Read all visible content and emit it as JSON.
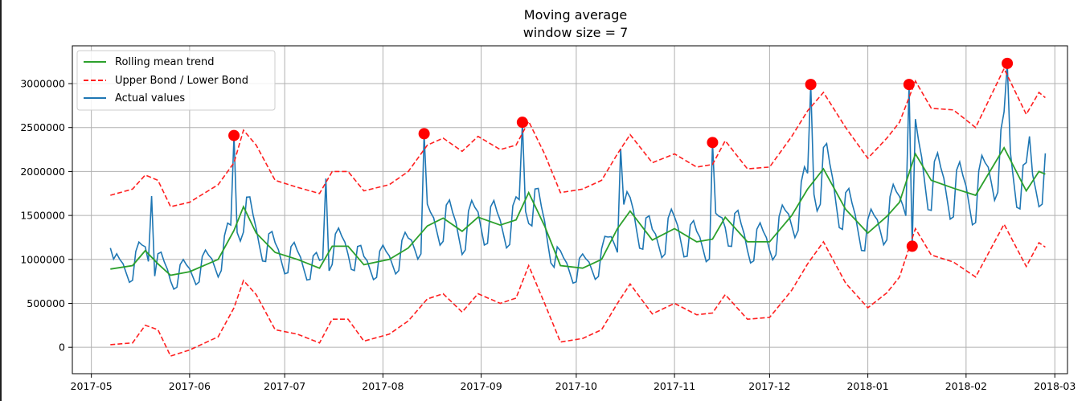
{
  "chart_data": {
    "type": "line",
    "title": "Moving average",
    "subtitle": "window size = 7",
    "xlabel": "",
    "ylabel": "",
    "xlim": [
      "2017-04-25",
      "2018-03-05"
    ],
    "ylim": [
      -300000,
      3430000
    ],
    "grid": true,
    "legend_position": "top-left",
    "x_ticks": [
      "2017-05",
      "2017-06",
      "2017-07",
      "2017-08",
      "2017-09",
      "2017-10",
      "2017-11",
      "2017-12",
      "2018-01",
      "2018-02",
      "2018-03"
    ],
    "y_ticks": [
      0,
      500000,
      1000000,
      1500000,
      2000000,
      2500000,
      3000000
    ],
    "series": [
      {
        "name": "Rolling mean trend",
        "color": "#2ca02c",
        "style": "solid",
        "points": [
          [
            "2017-05-07",
            890000
          ],
          [
            "2017-05-14",
            930000
          ],
          [
            "2017-05-18",
            1100000
          ],
          [
            "2017-05-22",
            950000
          ],
          [
            "2017-05-26",
            820000
          ],
          [
            "2017-06-01",
            860000
          ],
          [
            "2017-06-10",
            1000000
          ],
          [
            "2017-06-15",
            1330000
          ],
          [
            "2017-06-18",
            1600000
          ],
          [
            "2017-06-22",
            1300000
          ],
          [
            "2017-06-28",
            1080000
          ],
          [
            "2017-07-05",
            1000000
          ],
          [
            "2017-07-12",
            900000
          ],
          [
            "2017-07-16",
            1150000
          ],
          [
            "2017-07-21",
            1150000
          ],
          [
            "2017-07-26",
            940000
          ],
          [
            "2017-08-03",
            1000000
          ],
          [
            "2017-08-09",
            1130000
          ],
          [
            "2017-08-15",
            1380000
          ],
          [
            "2017-08-20",
            1470000
          ],
          [
            "2017-08-26",
            1320000
          ],
          [
            "2017-08-31",
            1480000
          ],
          [
            "2017-09-07",
            1390000
          ],
          [
            "2017-09-12",
            1450000
          ],
          [
            "2017-09-16",
            1760000
          ],
          [
            "2017-09-21",
            1380000
          ],
          [
            "2017-09-26",
            930000
          ],
          [
            "2017-10-03",
            900000
          ],
          [
            "2017-10-09",
            1000000
          ],
          [
            "2017-10-14",
            1350000
          ],
          [
            "2017-10-18",
            1550000
          ],
          [
            "2017-10-25",
            1220000
          ],
          [
            "2017-11-01",
            1350000
          ],
          [
            "2017-11-08",
            1200000
          ],
          [
            "2017-11-13",
            1230000
          ],
          [
            "2017-11-17",
            1480000
          ],
          [
            "2017-11-24",
            1200000
          ],
          [
            "2017-12-01",
            1200000
          ],
          [
            "2017-12-08",
            1500000
          ],
          [
            "2017-12-13",
            1800000
          ],
          [
            "2017-12-18",
            2030000
          ],
          [
            "2017-12-25",
            1570000
          ],
          [
            "2018-01-01",
            1300000
          ],
          [
            "2018-01-07",
            1490000
          ],
          [
            "2018-01-11",
            1650000
          ],
          [
            "2018-01-16",
            2200000
          ],
          [
            "2018-01-21",
            1900000
          ],
          [
            "2018-01-28",
            1810000
          ],
          [
            "2018-02-04",
            1730000
          ],
          [
            "2018-02-13",
            2270000
          ],
          [
            "2018-02-20",
            1780000
          ],
          [
            "2018-02-24",
            2000000
          ],
          [
            "2018-02-26",
            1970000
          ]
        ]
      },
      {
        "name": "Upper Bond / Lower Bond",
        "color": "#ff2020",
        "style": "dashed",
        "bands": [
          [
            [
              "2017-05-07",
              1730000
            ],
            [
              "2017-05-14",
              1800000
            ],
            [
              "2017-05-18",
              1960000
            ],
            [
              "2017-05-22",
              1900000
            ],
            [
              "2017-05-26",
              1600000
            ],
            [
              "2017-06-01",
              1650000
            ],
            [
              "2017-06-10",
              1850000
            ],
            [
              "2017-06-15",
              2100000
            ],
            [
              "2017-06-18",
              2470000
            ],
            [
              "2017-06-22",
              2300000
            ],
            [
              "2017-06-28",
              1900000
            ],
            [
              "2017-07-05",
              1820000
            ],
            [
              "2017-07-12",
              1750000
            ],
            [
              "2017-07-16",
              2000000
            ],
            [
              "2017-07-21",
              2000000
            ],
            [
              "2017-07-26",
              1780000
            ],
            [
              "2017-08-03",
              1850000
            ],
            [
              "2017-08-09",
              2000000
            ],
            [
              "2017-08-15",
              2300000
            ],
            [
              "2017-08-20",
              2380000
            ],
            [
              "2017-08-26",
              2230000
            ],
            [
              "2017-08-31",
              2400000
            ],
            [
              "2017-09-07",
              2250000
            ],
            [
              "2017-09-12",
              2300000
            ],
            [
              "2017-09-16",
              2570000
            ],
            [
              "2017-09-21",
              2200000
            ],
            [
              "2017-09-26",
              1760000
            ],
            [
              "2017-10-03",
              1800000
            ],
            [
              "2017-10-09",
              1900000
            ],
            [
              "2017-10-14",
              2200000
            ],
            [
              "2017-10-18",
              2420000
            ],
            [
              "2017-10-25",
              2100000
            ],
            [
              "2017-11-01",
              2200000
            ],
            [
              "2017-11-08",
              2050000
            ],
            [
              "2017-11-13",
              2080000
            ],
            [
              "2017-11-17",
              2350000
            ],
            [
              "2017-11-24",
              2030000
            ],
            [
              "2017-12-01",
              2050000
            ],
            [
              "2017-12-08",
              2400000
            ],
            [
              "2017-12-13",
              2690000
            ],
            [
              "2017-12-18",
              2900000
            ],
            [
              "2017-12-25",
              2500000
            ],
            [
              "2018-01-01",
              2150000
            ],
            [
              "2018-01-07",
              2380000
            ],
            [
              "2018-01-11",
              2560000
            ],
            [
              "2018-01-16",
              3030000
            ],
            [
              "2018-01-21",
              2720000
            ],
            [
              "2018-01-28",
              2700000
            ],
            [
              "2018-02-04",
              2500000
            ],
            [
              "2018-02-13",
              3170000
            ],
            [
              "2018-02-20",
              2650000
            ],
            [
              "2018-02-24",
              2900000
            ],
            [
              "2018-02-26",
              2840000
            ]
          ],
          [
            [
              "2017-05-07",
              30000
            ],
            [
              "2017-05-14",
              50000
            ],
            [
              "2017-05-18",
              250000
            ],
            [
              "2017-05-22",
              200000
            ],
            [
              "2017-05-26",
              -100000
            ],
            [
              "2017-06-01",
              -30000
            ],
            [
              "2017-06-10",
              120000
            ],
            [
              "2017-06-15",
              450000
            ],
            [
              "2017-06-18",
              760000
            ],
            [
              "2017-06-22",
              600000
            ],
            [
              "2017-06-28",
              200000
            ],
            [
              "2017-07-05",
              150000
            ],
            [
              "2017-07-12",
              50000
            ],
            [
              "2017-07-16",
              320000
            ],
            [
              "2017-07-21",
              320000
            ],
            [
              "2017-07-26",
              70000
            ],
            [
              "2017-08-03",
              150000
            ],
            [
              "2017-08-09",
              300000
            ],
            [
              "2017-08-15",
              550000
            ],
            [
              "2017-08-20",
              610000
            ],
            [
              "2017-08-26",
              400000
            ],
            [
              "2017-08-31",
              610000
            ],
            [
              "2017-09-07",
              500000
            ],
            [
              "2017-09-12",
              560000
            ],
            [
              "2017-09-16",
              930000
            ],
            [
              "2017-09-21",
              500000
            ],
            [
              "2017-09-26",
              60000
            ],
            [
              "2017-10-03",
              100000
            ],
            [
              "2017-10-09",
              200000
            ],
            [
              "2017-10-14",
              500000
            ],
            [
              "2017-10-18",
              720000
            ],
            [
              "2017-10-25",
              380000
            ],
            [
              "2017-11-01",
              500000
            ],
            [
              "2017-11-08",
              370000
            ],
            [
              "2017-11-13",
              390000
            ],
            [
              "2017-11-17",
              600000
            ],
            [
              "2017-11-24",
              320000
            ],
            [
              "2017-12-01",
              340000
            ],
            [
              "2017-12-08",
              650000
            ],
            [
              "2017-12-13",
              950000
            ],
            [
              "2017-12-18",
              1200000
            ],
            [
              "2017-12-25",
              730000
            ],
            [
              "2018-01-01",
              450000
            ],
            [
              "2018-01-07",
              620000
            ],
            [
              "2018-01-11",
              800000
            ],
            [
              "2018-01-16",
              1350000
            ],
            [
              "2018-01-21",
              1050000
            ],
            [
              "2018-01-28",
              970000
            ],
            [
              "2018-02-04",
              800000
            ],
            [
              "2018-02-13",
              1400000
            ],
            [
              "2018-02-20",
              920000
            ],
            [
              "2018-02-24",
              1190000
            ],
            [
              "2018-02-26",
              1140000
            ]
          ]
        ]
      },
      {
        "name": "Actual values",
        "color": "#1f77b4",
        "style": "solid",
        "generated_points": {
          "start": "2017-05-07",
          "end": "2018-02-26",
          "weekly_pattern": [
            0.82,
            1.12,
            1.18,
            1.1,
            1.04,
            0.92,
            0.8
          ],
          "spikes": [
            [
              "2017-05-07",
              1130000
            ],
            [
              "2017-05-20",
              1720000
            ],
            [
              "2017-06-15",
              2410000
            ],
            [
              "2017-07-14",
              1920000
            ],
            [
              "2017-08-14",
              2430000
            ],
            [
              "2017-09-14",
              2560000
            ],
            [
              "2017-10-15",
              2260000
            ],
            [
              "2017-11-13",
              2330000
            ],
            [
              "2017-12-14",
              2990000
            ],
            [
              "2018-01-14",
              2990000
            ],
            [
              "2018-01-15",
              1150000
            ],
            [
              "2018-02-14",
              3230000
            ],
            [
              "2018-02-21",
              2400000
            ]
          ]
        }
      }
    ],
    "anomalies": [
      [
        "2017-06-15",
        2410000
      ],
      [
        "2017-08-14",
        2430000
      ],
      [
        "2017-09-14",
        2560000
      ],
      [
        "2017-11-13",
        2330000
      ],
      [
        "2017-12-14",
        2990000
      ],
      [
        "2018-01-14",
        2990000
      ],
      [
        "2018-01-15",
        1150000
      ],
      [
        "2018-02-14",
        3230000
      ]
    ],
    "anomaly_color": "#ff0000"
  }
}
